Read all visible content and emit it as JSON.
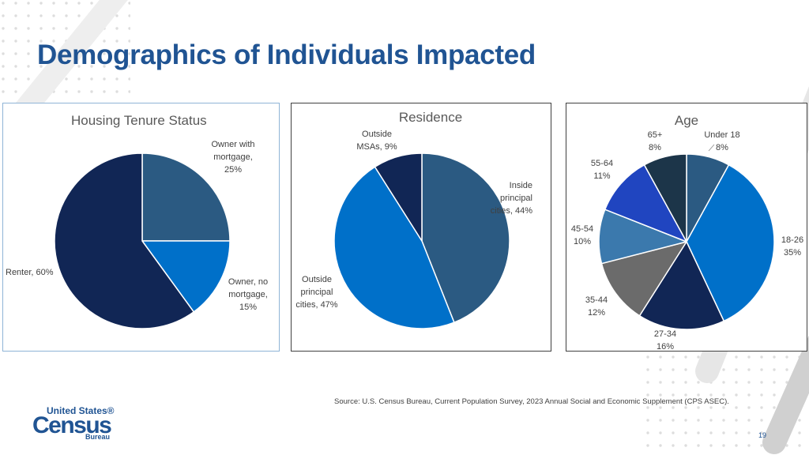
{
  "page": {
    "title": "Demographics of Individuals Impacted",
    "source": "Source: U.S. Census Bureau, Current Population Survey, 2023 Annual Social and Economic Supplement (CPS ASEC).",
    "page_number": "19",
    "logo": {
      "line1": "United States®",
      "line2": "Census",
      "line3": "Bureau"
    }
  },
  "colors": {
    "title": "#205493",
    "navy": "#112655",
    "slate_blue": "#2b5a82",
    "bright_blue": "#0070c9",
    "royal_blue": "#2045c0",
    "steel_blue": "#3b79ad",
    "gray": "#6b6b6b",
    "dark_slate": "#1c3549"
  },
  "chart_data": [
    {
      "type": "pie",
      "title": "Housing Tenure Status",
      "start_angle_deg": 0,
      "slices": [
        {
          "name": "Owner with mortgage",
          "value": 25,
          "color": "#2b5a82",
          "label_lines": [
            "Owner with",
            "mortgage,",
            "25%"
          ]
        },
        {
          "name": "Owner, no mortgage",
          "value": 15,
          "color": "#0070c9",
          "label_lines": [
            "Owner, no",
            "mortgage,",
            "15%"
          ]
        },
        {
          "name": "Renter",
          "value": 60,
          "color": "#112655",
          "label_lines": [
            "Renter, 60%"
          ]
        }
      ]
    },
    {
      "type": "pie",
      "title": "Residence",
      "start_angle_deg": 0,
      "slices": [
        {
          "name": "Inside principal cities",
          "value": 44,
          "color": "#2b5a82",
          "label_lines": [
            "Inside",
            "principal",
            "cities, 44%"
          ]
        },
        {
          "name": "Outside principal cities",
          "value": 47,
          "color": "#0070c9",
          "label_lines": [
            "Outside",
            "principal",
            "cities, 47%"
          ]
        },
        {
          "name": "Outside MSAs",
          "value": 9,
          "color": "#112655",
          "label_lines": [
            "Outside",
            "MSAs, 9%"
          ]
        }
      ]
    },
    {
      "type": "pie",
      "title": "Age",
      "start_angle_deg": 0,
      "slices": [
        {
          "name": "Under 18",
          "value": 8,
          "color": "#2b5a82",
          "label_lines": [
            "Under 18",
            "8%"
          ]
        },
        {
          "name": "18-26",
          "value": 35,
          "color": "#0070c9",
          "label_lines": [
            "18-26",
            "35%"
          ]
        },
        {
          "name": "27-34",
          "value": 16,
          "color": "#112655",
          "label_lines": [
            "27-34",
            "16%"
          ]
        },
        {
          "name": "35-44",
          "value": 12,
          "color": "#6b6b6b",
          "label_lines": [
            "35-44",
            "12%"
          ]
        },
        {
          "name": "45-54",
          "value": 10,
          "color": "#3b79ad",
          "label_lines": [
            "45-54",
            "10%"
          ]
        },
        {
          "name": "55-64",
          "value": 11,
          "color": "#2045c0",
          "label_lines": [
            "55-64",
            "11%"
          ]
        },
        {
          "name": "65+",
          "value": 8,
          "color": "#1c3549",
          "label_lines": [
            "65+",
            "8%"
          ]
        }
      ]
    }
  ]
}
